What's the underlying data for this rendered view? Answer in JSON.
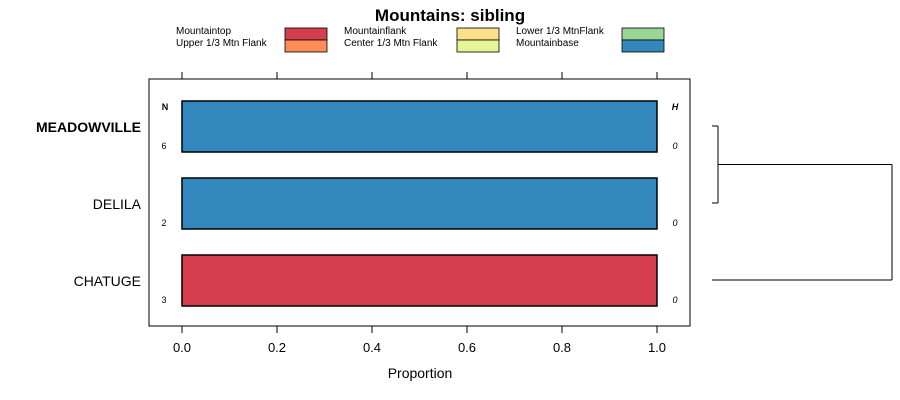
{
  "chart_data": {
    "type": "bar",
    "orientation": "horizontal",
    "stacked": true,
    "title": "Mountains: sibling",
    "xlabel": "Proportion",
    "ylabel": "",
    "xlim": [
      0,
      1
    ],
    "x_ticks": [
      "0.0",
      "0.2",
      "0.4",
      "0.6",
      "0.8",
      "1.0"
    ],
    "categories": [
      "MEADOWVILLE",
      "DELILA",
      "CHATUGE"
    ],
    "highlighted_category": "MEADOWVILLE",
    "legend_position": "top",
    "legend": [
      {
        "label": "Mountaintop",
        "color": "#d53e4f"
      },
      {
        "label": "Upper 1/3 Mtn Flank",
        "color": "#fc8d59"
      },
      {
        "label": "Mountainflank",
        "color": "#fee08b"
      },
      {
        "label": "Center 1/3 Mtn Flank",
        "color": "#e6f598"
      },
      {
        "label": "Lower 1/3 MtnFlank",
        "color": "#99d594"
      },
      {
        "label": "Mountainbase",
        "color": "#3288bd"
      }
    ],
    "series": [
      {
        "name": "Mountaintop",
        "values": [
          0,
          0,
          1
        ]
      },
      {
        "name": "Upper 1/3 Mtn Flank",
        "values": [
          0,
          0,
          0
        ]
      },
      {
        "name": "Mountainflank",
        "values": [
          0,
          0,
          0
        ]
      },
      {
        "name": "Center 1/3 Mtn Flank",
        "values": [
          0,
          0,
          0
        ]
      },
      {
        "name": "Lower 1/3 MtnFlank",
        "values": [
          0,
          0,
          0
        ]
      },
      {
        "name": "Mountainbase",
        "values": [
          1,
          1,
          0
        ]
      }
    ],
    "n_header": "N",
    "h_header": "H",
    "n_values": [
      "6",
      "2",
      "3"
    ],
    "h_values": [
      "0",
      "0",
      "0"
    ],
    "dendrogram": {
      "leaves": [
        "MEADOWVILLE",
        "DELILA",
        "CHATUGE"
      ],
      "merges": [
        {
          "children": [
            "MEADOWVILLE",
            "DELILA"
          ],
          "height": 0.015
        },
        {
          "children": [
            "MEADOWVILLE+DELILA",
            "CHATUGE"
          ],
          "height": 1.0
        }
      ]
    }
  }
}
